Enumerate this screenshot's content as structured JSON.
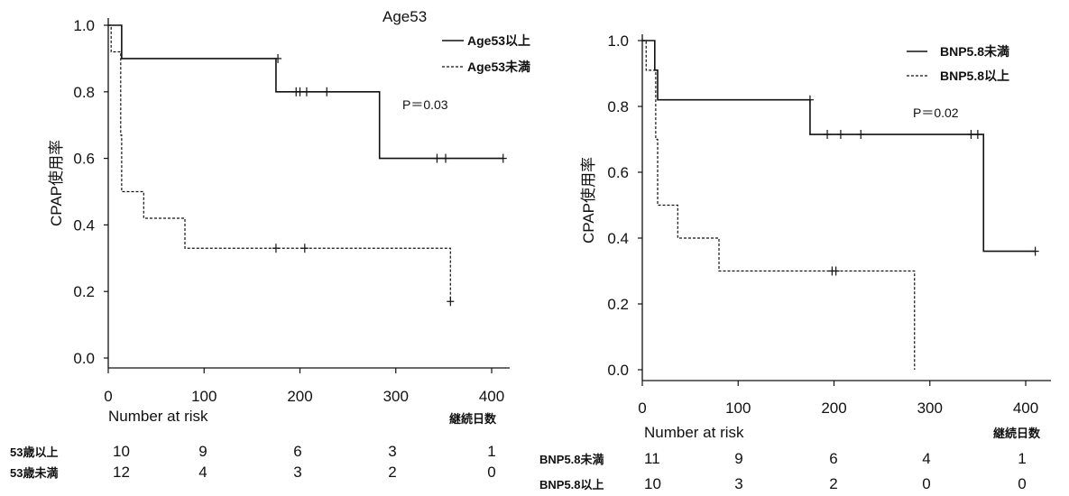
{
  "chart_data": [
    {
      "type": "line",
      "title": "Age53",
      "ylabel": "CPAP使用率",
      "xlabel_right": "継続日数",
      "risk_title": "Number at risk",
      "pvalue": "P＝0.03",
      "xlim": [
        0,
        425
      ],
      "ylim": [
        0,
        1.0
      ],
      "xticks": [
        0,
        100,
        200,
        300,
        400
      ],
      "yticks": [
        "0.0",
        "0.2",
        "0.4",
        "0.6",
        "0.8",
        "1.0"
      ],
      "series": [
        {
          "name": "Age53以上",
          "style": "solid",
          "steps": [
            [
              0,
              1.0
            ],
            [
              14,
              0.9
            ],
            [
              175,
              0.8
            ],
            [
              283,
              0.6
            ],
            [
              412,
              0.6
            ]
          ],
          "censors": [
            [
              177,
              0.9
            ],
            [
              196,
              0.8
            ],
            [
              200,
              0.8
            ],
            [
              207,
              0.8
            ],
            [
              228,
              0.8
            ],
            [
              343,
              0.6
            ],
            [
              352,
              0.6
            ],
            [
              412,
              0.6
            ]
          ]
        },
        {
          "name": "Age53未満",
          "style": "dashed",
          "steps": [
            [
              0,
              1.0
            ],
            [
              3,
              0.92
            ],
            [
              12,
              0.92
            ],
            [
              13,
              0.67
            ],
            [
              14,
              0.5
            ],
            [
              37,
              0.42
            ],
            [
              80,
              0.33
            ],
            [
              357,
              0.33
            ],
            [
              357,
              0.17
            ]
          ],
          "censors": [
            [
              175,
              0.33
            ],
            [
              205,
              0.33
            ],
            [
              357,
              0.17
            ]
          ]
        }
      ],
      "risk_table": [
        {
          "label": "53歳以上",
          "values": [
            10,
            9,
            6,
            3,
            1
          ]
        },
        {
          "label": "53歳未満",
          "values": [
            12,
            4,
            3,
            2,
            0
          ]
        }
      ]
    },
    {
      "type": "line",
      "title": "",
      "ylabel": "CPAP使用率",
      "xlabel_right": "継続日数",
      "risk_title": "Number at risk",
      "pvalue": "P＝0.02",
      "xlim": [
        0,
        425
      ],
      "ylim": [
        0,
        1.0
      ],
      "xticks": [
        0,
        100,
        200,
        300,
        400
      ],
      "yticks": [
        "0.0",
        "0.2",
        "0.4",
        "0.6",
        "0.8",
        "1.0"
      ],
      "series": [
        {
          "name": "BNP5.8未満",
          "style": "solid",
          "steps": [
            [
              0,
              1.0
            ],
            [
              13,
              0.91
            ],
            [
              16,
              0.82
            ],
            [
              175,
              0.715
            ],
            [
              356,
              0.36
            ],
            [
              410,
              0.36
            ]
          ],
          "censors": [
            [
              175,
              0.82
            ],
            [
              193,
              0.715
            ],
            [
              207,
              0.715
            ],
            [
              228,
              0.715
            ],
            [
              343,
              0.715
            ],
            [
              350,
              0.715
            ],
            [
              410,
              0.36
            ]
          ]
        },
        {
          "name": "BNP5.8以上",
          "style": "dashed",
          "steps": [
            [
              0,
              1.0
            ],
            [
              4,
              0.91
            ],
            [
              14,
              0.7
            ],
            [
              16,
              0.5
            ],
            [
              37,
              0.4
            ],
            [
              80,
              0.3
            ],
            [
              284,
              0.3
            ],
            [
              284,
              0.0
            ]
          ],
          "censors": [
            [
              198,
              0.3
            ],
            [
              202,
              0.3
            ]
          ]
        }
      ],
      "risk_table": [
        {
          "label": "BNP5.8未満",
          "values": [
            11,
            9,
            6,
            4,
            1
          ]
        },
        {
          "label": "BNP5.8以上",
          "values": [
            10,
            3,
            2,
            0,
            0
          ]
        }
      ]
    }
  ]
}
